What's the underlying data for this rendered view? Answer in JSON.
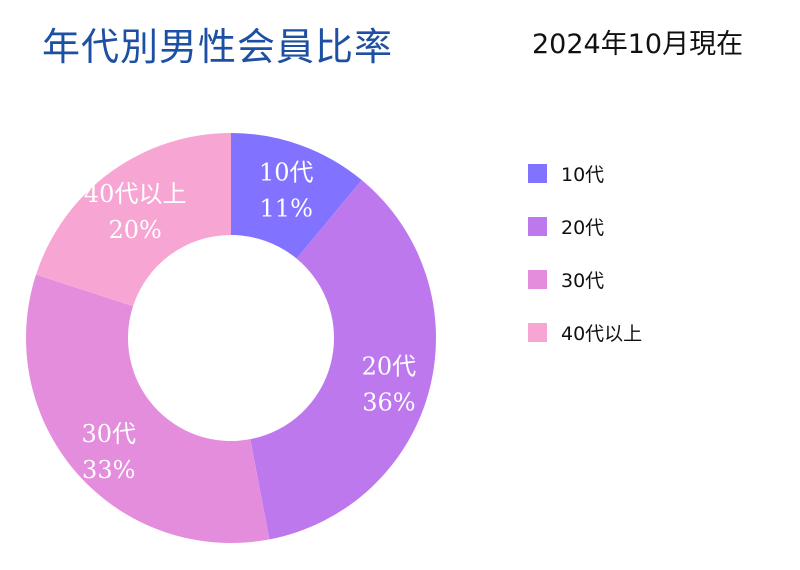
{
  "header": {
    "title": "年代別男性会員比率",
    "subtitle": "2024年10月現在"
  },
  "chart_data": {
    "type": "pie",
    "donut": true,
    "categories": [
      "10代",
      "20代",
      "30代",
      "40代以上"
    ],
    "values": [
      11,
      36,
      33,
      20
    ],
    "value_labels": [
      "11%",
      "36%",
      "33%",
      "20%"
    ],
    "colors": [
      "#8173ff",
      "#bd78ee",
      "#e48ddd",
      "#f7a6d4"
    ],
    "legend_position": "right",
    "title": "年代別男性会員比率",
    "subtitle": "2024年10月現在"
  }
}
